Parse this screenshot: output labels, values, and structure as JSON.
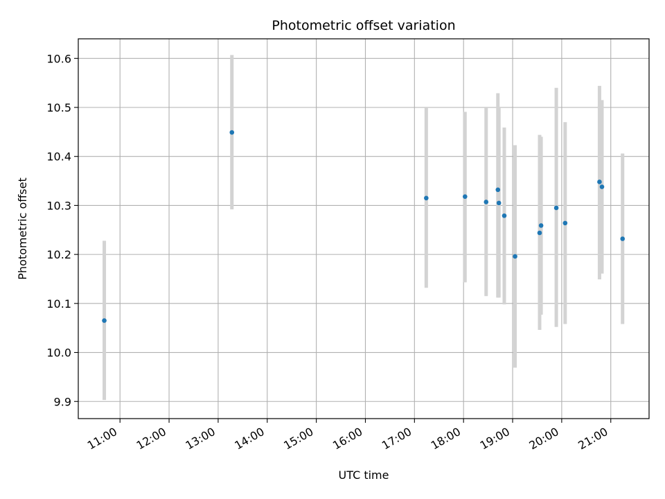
{
  "chart_data": {
    "type": "scatter",
    "title": "Photometric offset variation",
    "xlabel": "UTC time",
    "ylabel": "Photometric offset",
    "x_unit": "hours UTC",
    "xlim": [
      10.15,
      21.78
    ],
    "ylim": [
      9.865,
      10.64
    ],
    "x_ticks": [
      11,
      12,
      13,
      14,
      15,
      16,
      17,
      18,
      19,
      20,
      21
    ],
    "x_tick_labels": [
      "11:00",
      "12:00",
      "13:00",
      "14:00",
      "15:00",
      "16:00",
      "17:00",
      "18:00",
      "19:00",
      "20:00",
      "21:00"
    ],
    "y_ticks": [
      9.9,
      10.0,
      10.1,
      10.2,
      10.3,
      10.4,
      10.5,
      10.6
    ],
    "y_tick_labels": [
      "9.9",
      "10.0",
      "10.1",
      "10.2",
      "10.3",
      "10.4",
      "10.5",
      "10.6"
    ],
    "grid": true,
    "marker_color": "#1f77b4",
    "errorbar_color": "#d3d3d3",
    "points": [
      {
        "time": "10:41",
        "x": 10.68,
        "y": 10.065,
        "ylow": 9.903,
        "yhigh": 10.228
      },
      {
        "time": "13:17",
        "x": 13.28,
        "y": 10.449,
        "ylow": 10.292,
        "yhigh": 10.607
      },
      {
        "time": "17:14",
        "x": 17.24,
        "y": 10.315,
        "ylow": 10.132,
        "yhigh": 10.5
      },
      {
        "time": "18:02",
        "x": 18.03,
        "y": 10.318,
        "ylow": 10.143,
        "yhigh": 10.491
      },
      {
        "time": "18:28",
        "x": 18.46,
        "y": 10.307,
        "ylow": 10.115,
        "yhigh": 10.5
      },
      {
        "time": "18:42",
        "x": 18.7,
        "y": 10.332,
        "ylow": 10.112,
        "yhigh": 10.529
      },
      {
        "time": "18:43",
        "x": 18.72,
        "y": 10.305,
        "ylow": 10.112,
        "yhigh": 10.5
      },
      {
        "time": "18:50",
        "x": 18.83,
        "y": 10.279,
        "ylow": 10.098,
        "yhigh": 10.459
      },
      {
        "time": "19:03",
        "x": 19.05,
        "y": 10.196,
        "ylow": 9.969,
        "yhigh": 10.423
      },
      {
        "time": "19:33",
        "x": 19.55,
        "y": 10.244,
        "ylow": 10.046,
        "yhigh": 10.444
      },
      {
        "time": "19:35",
        "x": 19.58,
        "y": 10.259,
        "ylow": 10.077,
        "yhigh": 10.44
      },
      {
        "time": "19:54",
        "x": 19.89,
        "y": 10.295,
        "ylow": 10.052,
        "yhigh": 10.54
      },
      {
        "time": "20:04",
        "x": 20.07,
        "y": 10.264,
        "ylow": 10.058,
        "yhigh": 10.47
      },
      {
        "time": "20:46",
        "x": 20.77,
        "y": 10.348,
        "ylow": 10.149,
        "yhigh": 10.544
      },
      {
        "time": "20:49",
        "x": 20.82,
        "y": 10.338,
        "ylow": 10.161,
        "yhigh": 10.515
      },
      {
        "time": "21:14",
        "x": 21.24,
        "y": 10.232,
        "ylow": 10.058,
        "yhigh": 10.406
      }
    ]
  }
}
